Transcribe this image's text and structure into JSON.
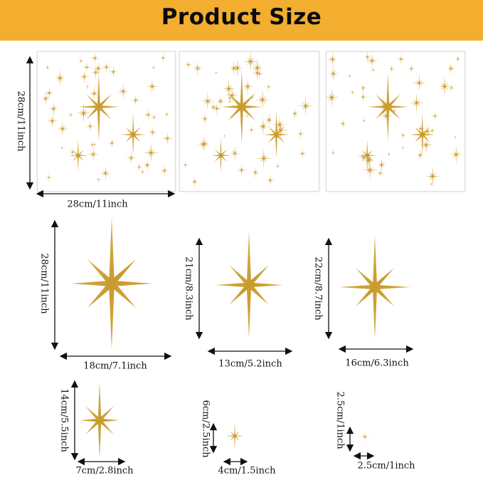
{
  "header": {
    "title": "Product Size"
  },
  "colors": {
    "banner": "#F3AE2F",
    "gold": "#D4A63A"
  },
  "sheet": {
    "height_label": "28cm/11inch",
    "width_label": "28cm/11inch",
    "count": 3
  },
  "stars": [
    {
      "height_label": "28cm/11inch",
      "width_label": "18cm/7.1inch"
    },
    {
      "height_label": "21cm/8.3inch",
      "width_label": "13cm/5.2inch"
    },
    {
      "height_label": "22cm/8.7inch",
      "width_label": "16cm/6.3inch"
    },
    {
      "height_label": "14cm/5.5inch",
      "width_label": "7cm/2.8inch"
    },
    {
      "height_label": "6cm/2.5inch",
      "width_label": "4cm/1.5inch"
    },
    {
      "height_label": "2.5cm/1inch",
      "width_label": "2.5cm/1inch"
    }
  ]
}
